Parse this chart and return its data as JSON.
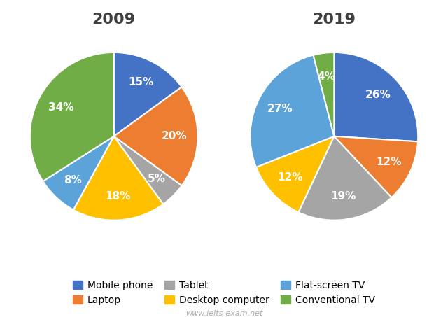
{
  "chart_2009": {
    "title": "2009",
    "values": [
      15,
      20,
      5,
      18,
      8,
      34
    ],
    "colors": [
      "#4472C4",
      "#ED7D31",
      "#A5A5A5",
      "#FFC000",
      "#5BA3D9",
      "#70AD47"
    ],
    "startangle": 90
  },
  "chart_2019": {
    "title": "2019",
    "values": [
      26,
      12,
      19,
      12,
      27,
      4
    ],
    "colors": [
      "#4472C4",
      "#ED7D31",
      "#A5A5A5",
      "#FFC000",
      "#5BA3D9",
      "#70AD47"
    ],
    "startangle": 90
  },
  "legend_labels": [
    "Mobile phone",
    "Laptop",
    "Tablet",
    "Desktop computer",
    "Flat-screen TV",
    "Conventional TV"
  ],
  "legend_colors": [
    "#4472C4",
    "#ED7D31",
    "#A5A5A5",
    "#FFC000",
    "#5BA3D9",
    "#70AD47"
  ],
  "watermark": "www.ielts-exam.net",
  "title_fontsize": 16,
  "label_fontsize": 11,
  "legend_fontsize": 10,
  "title_color": "#404040"
}
